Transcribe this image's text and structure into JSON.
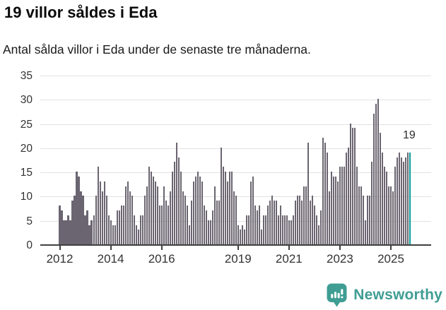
{
  "header": {
    "title": "19 villor såldes i Eda",
    "subtitle": "Antal sålda villor i Eda under de senaste tre månaderna."
  },
  "annotation": {
    "last_value_label": "19"
  },
  "footer": {
    "brand": "Newsworthy"
  },
  "colors": {
    "bar": "#6a6570",
    "highlight": "#0b9e99",
    "grid": "#e2e2e2",
    "axis": "#404040",
    "text": "#333333",
    "brand": "#3f9d93"
  },
  "chart_data": {
    "type": "bar",
    "title": "19 villor såldes i Eda",
    "subtitle": "Antal sålda villor i Eda under de senaste tre månaderna.",
    "x_start_year": 2012,
    "months_per_bar": 1,
    "ylim": [
      0,
      35
    ],
    "yticks": [
      0,
      5,
      10,
      15,
      20,
      25,
      30,
      35
    ],
    "xticks": [
      2012,
      2014,
      2016,
      2019,
      2021,
      2023,
      2025
    ],
    "grid": true,
    "highlight_last_bar": true,
    "last_bar_label": "19",
    "values": [
      8,
      7,
      5,
      5,
      6,
      5,
      9,
      10,
      15,
      14,
      11,
      10,
      6,
      7,
      4,
      5,
      6,
      10,
      16,
      13,
      11,
      13,
      10,
      6,
      5,
      4,
      4,
      7,
      7,
      8,
      8,
      12,
      13,
      11,
      10,
      6,
      4,
      3,
      6,
      6,
      10,
      12,
      16,
      15,
      14,
      13,
      12,
      8,
      8,
      12,
      9,
      8,
      11,
      15,
      17,
      21,
      18,
      15,
      11,
      10,
      8,
      4,
      9,
      13,
      14,
      15,
      14,
      13,
      8,
      7,
      5,
      5,
      7,
      12,
      9,
      9,
      20,
      16,
      15,
      13,
      15,
      15,
      11,
      10,
      4,
      3,
      4,
      3,
      6,
      6,
      13,
      14,
      8,
      7,
      8,
      3,
      6,
      6,
      8,
      9,
      10,
      9,
      9,
      6,
      8,
      6,
      6,
      6,
      5,
      5,
      6,
      9,
      10,
      10,
      9,
      12,
      12,
      21,
      9,
      10,
      8,
      6,
      4,
      7,
      22,
      21,
      19,
      11,
      15,
      14,
      14,
      13,
      16,
      16,
      16,
      19,
      20,
      25,
      24,
      24,
      16,
      12,
      12,
      10,
      5,
      10,
      10,
      17,
      27,
      29,
      30,
      23,
      19,
      16,
      15,
      12,
      12,
      11,
      16,
      18,
      19,
      18,
      17,
      18,
      19,
      19
    ]
  }
}
